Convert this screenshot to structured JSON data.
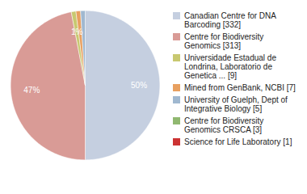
{
  "chart_data": {
    "type": "pie",
    "categories": [
      "Canadian Centre for DNA\nBarcoding [332]",
      "Centre for Biodiversity\nGenomics [313]",
      "Universidade Estadual de\nLondrina, Laboratorio de\nGenetica ... [9]",
      "Mined from GenBank, NCBI [7]",
      "University of Guelph, Dept of\nIntegrative Biology [5]",
      "Centre for Biodiversity\nGenomics CRSCA [3]",
      "Science for Life Laboratory [1]"
    ],
    "values": [
      50,
      47,
      1,
      1,
      1,
      0,
      0
    ],
    "value_labels": [
      "50%",
      "47%",
      "1%",
      null,
      null,
      null,
      null
    ],
    "colors": [
      "#c5cfe0",
      "#d99b96",
      "#c8c870",
      "#e8a060",
      "#a0b8d0",
      "#90b870",
      "#cc3333"
    ],
    "data_labels": true,
    "legend": "upper right"
  }
}
